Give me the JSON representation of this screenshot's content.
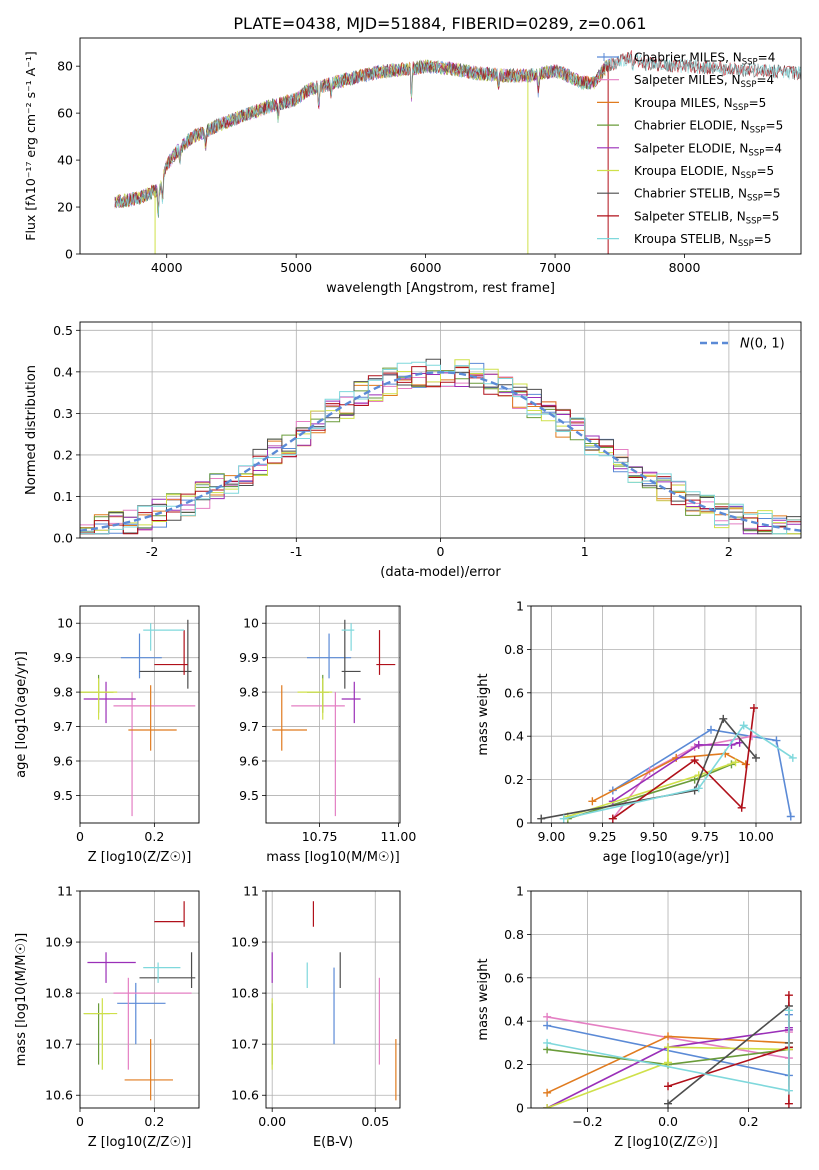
{
  "title": "PLATE=0438, MJD=51884, FIBERID=0289, z=0.061",
  "colors": {
    "Chabrier MILES": "#5b8ad6",
    "Salpeter MILES": "#e47fc3",
    "Kroupa MILES": "#e07b1f",
    "Chabrier ELODIE": "#6a9c3a",
    "Salpeter ELODIE": "#9a2fb8",
    "Kroupa ELODIE": "#cfe04a",
    "Chabrier STELIB": "#4d4d4d",
    "Salpeter STELIB": "#b0101a",
    "Kroupa STELIB": "#7fd8dc"
  },
  "chart_data": [
    {
      "id": "spectrum",
      "type": "line",
      "title": "PLATE=0438, MJD=51884, FIBERID=0289, z=0.061",
      "xlabel": "wavelength [Angstrom, rest frame]",
      "ylabel": "Flux [f_λ 10^-17 erg cm^-2 s^-1 A^-1]",
      "xlim": [
        3330,
        8900
      ],
      "ylim": [
        0,
        92
      ],
      "xticks": [
        4000,
        5000,
        6000,
        7000,
        8000
      ],
      "yticks": [
        0,
        20,
        40,
        60,
        80
      ],
      "grid": false,
      "legend_position": "top-right",
      "legend": [
        {
          "label": "Chabrier MILES",
          "nssp": "4"
        },
        {
          "label": "Salpeter MILES",
          "nssp": "4"
        },
        {
          "label": "Kroupa MILES",
          "nssp": "5"
        },
        {
          "label": "Chabrier ELODIE",
          "nssp": "5"
        },
        {
          "label": "Salpeter ELODIE",
          "nssp": "4"
        },
        {
          "label": "Kroupa ELODIE",
          "nssp": "5"
        },
        {
          "label": "Chabrier STELIB",
          "nssp": "5"
        },
        {
          "label": "Salpeter STELIB",
          "nssp": "5"
        },
        {
          "label": "Kroupa STELIB",
          "nssp": "5"
        }
      ],
      "continuum": [
        [
          3600,
          22
        ],
        [
          3800,
          24
        ],
        [
          3950,
          28
        ],
        [
          4000,
          38
        ],
        [
          4100,
          45
        ],
        [
          4200,
          50
        ],
        [
          4300,
          52
        ],
        [
          4400,
          55
        ],
        [
          4600,
          59
        ],
        [
          4800,
          63
        ],
        [
          5000,
          66
        ],
        [
          5100,
          70
        ],
        [
          5300,
          73
        ],
        [
          5500,
          76
        ],
        [
          5700,
          78
        ],
        [
          5900,
          79
        ],
        [
          6000,
          80
        ],
        [
          6200,
          79
        ],
        [
          6400,
          77
        ],
        [
          6600,
          76
        ],
        [
          6800,
          76
        ],
        [
          6900,
          77
        ],
        [
          7000,
          78
        ],
        [
          7100,
          76
        ],
        [
          7200,
          73
        ],
        [
          7300,
          73
        ],
        [
          7400,
          80
        ],
        [
          7600,
          84
        ],
        [
          7700,
          81
        ],
        [
          8000,
          80
        ],
        [
          8300,
          79
        ],
        [
          8600,
          78
        ],
        [
          8900,
          77
        ]
      ]
    },
    {
      "id": "residuals",
      "type": "histogram",
      "xlabel": "(data-model)/error",
      "ylabel": "Normed distribution",
      "xlim": [
        -2.5,
        2.5
      ],
      "ylim": [
        0,
        0.52
      ],
      "xticks": [
        -2,
        -1,
        0,
        1,
        2
      ],
      "yticks": [
        0.0,
        0.1,
        0.2,
        0.3,
        0.4,
        0.5
      ],
      "grid": true,
      "legend_position": "top-right",
      "reference_label": "N(0,1)",
      "bin_width": 0.1
    },
    {
      "id": "age-vs-Z",
      "type": "errorbar",
      "xlabel": "Z [log10(Z/Z☉)]",
      "ylabel": "age  [log10(age/yr)]",
      "xlim": [
        0.0,
        0.32
      ],
      "ylim": [
        9.42,
        10.05
      ],
      "xticks": [
        0.0,
        0.2
      ],
      "yticks": [
        9.5,
        9.6,
        9.7,
        9.8,
        9.9,
        10.0
      ],
      "grid": true,
      "points": [
        {
          "model": "Chabrier MILES",
          "x": 0.16,
          "y": 9.9,
          "xerr": [
            0.11,
            0.22
          ],
          "yerr": [
            9.84,
            9.97
          ]
        },
        {
          "model": "Salpeter MILES",
          "x": 0.14,
          "y": 9.76,
          "xerr": [
            0.09,
            0.31
          ],
          "yerr": [
            9.44,
            9.8
          ]
        },
        {
          "model": "Kroupa MILES",
          "x": 0.19,
          "y": 9.69,
          "xerr": [
            0.13,
            0.26
          ],
          "yerr": [
            9.63,
            9.82
          ]
        },
        {
          "model": "Chabrier ELODIE",
          "x": 0.05,
          "y": 9.8,
          "xerr": [
            0.0,
            0.09
          ],
          "yerr": [
            9.74,
            9.85
          ]
        },
        {
          "model": "Salpeter ELODIE",
          "x": 0.07,
          "y": 9.78,
          "xerr": [
            0.01,
            0.15
          ],
          "yerr": [
            9.71,
            9.83
          ]
        },
        {
          "model": "Kroupa ELODIE",
          "x": 0.05,
          "y": 9.8,
          "xerr": [
            0.0,
            0.1
          ],
          "yerr": [
            9.72,
            9.84
          ]
        },
        {
          "model": "Chabrier STELIB",
          "x": 0.29,
          "y": 9.86,
          "xerr": [
            0.16,
            0.3
          ],
          "yerr": [
            9.81,
            10.01
          ]
        },
        {
          "model": "Salpeter STELIB",
          "x": 0.28,
          "y": 9.88,
          "xerr": [
            0.2,
            0.29
          ],
          "yerr": [
            9.85,
            9.98
          ]
        },
        {
          "model": "Kroupa STELIB",
          "x": 0.19,
          "y": 9.98,
          "xerr": [
            0.17,
            0.28
          ],
          "yerr": [
            9.92,
            10.0
          ]
        }
      ]
    },
    {
      "id": "age-vs-mass",
      "type": "errorbar",
      "xlabel": "mass [log10(M/M☉)]",
      "ylabel": "",
      "xlim": [
        10.58,
        11.005
      ],
      "ylim": [
        9.42,
        10.05
      ],
      "xticks": [
        10.75,
        11.0
      ],
      "xticklabels": [
        "10.75",
        "11.00"
      ],
      "yticks": [
        9.5,
        9.6,
        9.7,
        9.8,
        9.9,
        10.0
      ],
      "grid": true,
      "points": [
        {
          "model": "Chabrier MILES",
          "x": 10.78,
          "y": 9.9,
          "xerr": [
            10.71,
            10.85
          ],
          "yerr": [
            9.84,
            9.97
          ]
        },
        {
          "model": "Salpeter MILES",
          "x": 10.8,
          "y": 9.76,
          "xerr": [
            10.66,
            10.83
          ],
          "yerr": [
            9.44,
            9.8
          ]
        },
        {
          "model": "Kroupa MILES",
          "x": 10.63,
          "y": 9.69,
          "xerr": [
            10.6,
            10.71
          ],
          "yerr": [
            9.63,
            9.82
          ]
        },
        {
          "model": "Chabrier ELODIE",
          "x": 10.76,
          "y": 9.8,
          "xerr": [
            10.71,
            10.78
          ],
          "yerr": [
            9.74,
            9.85
          ]
        },
        {
          "model": "Salpeter ELODIE",
          "x": 10.86,
          "y": 9.78,
          "xerr": [
            10.82,
            10.88
          ],
          "yerr": [
            9.71,
            9.83
          ]
        },
        {
          "model": "Kroupa ELODIE",
          "x": 10.76,
          "y": 9.8,
          "xerr": [
            10.68,
            10.79
          ],
          "yerr": [
            9.72,
            9.84
          ]
        },
        {
          "model": "Chabrier STELIB",
          "x": 10.83,
          "y": 9.86,
          "xerr": [
            10.82,
            10.88
          ],
          "yerr": [
            9.81,
            10.01
          ]
        },
        {
          "model": "Salpeter STELIB",
          "x": 10.94,
          "y": 9.88,
          "xerr": [
            10.93,
            10.99
          ],
          "yerr": [
            9.85,
            9.98
          ]
        },
        {
          "model": "Kroupa STELIB",
          "x": 10.85,
          "y": 9.98,
          "xerr": [
            10.82,
            10.86
          ],
          "yerr": [
            9.92,
            10.0
          ]
        }
      ]
    },
    {
      "id": "weight-vs-age",
      "type": "line",
      "xlabel": "age  [log10(age/yr)]",
      "ylabel": "mass weight",
      "xlim": [
        8.9,
        10.22
      ],
      "ylim": [
        0,
        1.0
      ],
      "xticks": [
        9.0,
        9.25,
        9.5,
        9.75,
        10.0
      ],
      "xticklabels": [
        "9.00",
        "9.25",
        "9.50",
        "9.75",
        "10.00"
      ],
      "yticks": [
        0.0,
        0.2,
        0.4,
        0.6,
        0.8,
        1.0
      ],
      "grid": true,
      "series": [
        {
          "model": "Chabrier MILES",
          "x": [
            9.3,
            9.78,
            10.1,
            10.17
          ],
          "y": [
            0.15,
            0.43,
            0.38,
            0.03
          ]
        },
        {
          "model": "Salpeter MILES",
          "x": [
            9.3,
            9.48,
            9.7,
            9.98
          ],
          "y": [
            0.02,
            0.24,
            0.35,
            0.4
          ]
        },
        {
          "model": "Kroupa MILES",
          "x": [
            9.2,
            9.61,
            9.85,
            9.95
          ],
          "y": [
            0.1,
            0.3,
            0.32,
            0.27
          ]
        },
        {
          "model": "Chabrier ELODIE",
          "x": [
            9.08,
            9.7,
            9.88
          ],
          "y": [
            0.02,
            0.2,
            0.27
          ]
        },
        {
          "model": "Salpeter ELODIE",
          "x": [
            9.3,
            9.72,
            9.88,
            9.92
          ],
          "y": [
            0.1,
            0.36,
            0.36,
            0.37
          ]
        },
        {
          "model": "Kroupa ELODIE",
          "x": [
            9.08,
            9.72,
            9.9
          ],
          "y": [
            0.03,
            0.22,
            0.28
          ]
        },
        {
          "model": "Chabrier STELIB",
          "x": [
            8.95,
            9.7,
            9.84,
            10.0
          ],
          "y": [
            0.02,
            0.15,
            0.48,
            0.3
          ]
        },
        {
          "model": "Salpeter STELIB",
          "x": [
            9.3,
            9.7,
            9.93,
            9.99
          ],
          "y": [
            0.02,
            0.29,
            0.07,
            0.53
          ]
        },
        {
          "model": "Kroupa STELIB",
          "x": [
            9.06,
            9.72,
            9.94,
            10.18
          ],
          "y": [
            0.02,
            0.16,
            0.45,
            0.3
          ]
        }
      ]
    },
    {
      "id": "mass-vs-Z",
      "type": "errorbar",
      "xlabel": "Z [log10(Z/Z☉)]",
      "ylabel": "mass [log10(M/M☉)]",
      "xlim": [
        0.0,
        0.32
      ],
      "ylim": [
        10.575,
        11.0
      ],
      "xticks": [
        0.0,
        0.2
      ],
      "yticks": [
        10.6,
        10.7,
        10.8,
        10.9,
        11.0
      ],
      "grid": true,
      "points": [
        {
          "model": "Chabrier MILES",
          "x": 0.15,
          "y": 10.78,
          "xerr": [
            0.1,
            0.23
          ],
          "yerr": [
            10.7,
            10.82
          ]
        },
        {
          "model": "Salpeter MILES",
          "x": 0.13,
          "y": 10.8,
          "xerr": [
            0.09,
            0.3
          ],
          "yerr": [
            10.65,
            10.83
          ]
        },
        {
          "model": "Kroupa MILES",
          "x": 0.19,
          "y": 10.63,
          "xerr": [
            0.12,
            0.25
          ],
          "yerr": [
            10.59,
            10.71
          ]
        },
        {
          "model": "Chabrier ELODIE",
          "x": 0.05,
          "y": 10.76,
          "xerr": [
            0.01,
            0.08
          ],
          "yerr": [
            10.66,
            10.78
          ]
        },
        {
          "model": "Salpeter ELODIE",
          "x": 0.07,
          "y": 10.86,
          "xerr": [
            0.02,
            0.15
          ],
          "yerr": [
            10.82,
            10.88
          ]
        },
        {
          "model": "Kroupa ELODIE",
          "x": 0.06,
          "y": 10.76,
          "xerr": [
            0.01,
            0.1
          ],
          "yerr": [
            10.65,
            10.79
          ]
        },
        {
          "model": "Chabrier STELIB",
          "x": 0.3,
          "y": 10.83,
          "xerr": [
            0.16,
            0.31
          ],
          "yerr": [
            10.81,
            10.88
          ]
        },
        {
          "model": "Salpeter STELIB",
          "x": 0.28,
          "y": 10.94,
          "xerr": [
            0.2,
            0.28
          ],
          "yerr": [
            10.93,
            10.98
          ]
        },
        {
          "model": "Kroupa STELIB",
          "x": 0.21,
          "y": 10.85,
          "xerr": [
            0.17,
            0.27
          ],
          "yerr": [
            10.82,
            10.86
          ]
        }
      ]
    },
    {
      "id": "mass-vs-ebv",
      "type": "errorbar",
      "xlabel": "E(B-V)",
      "ylabel": "",
      "xlim": [
        -0.003,
        0.062
      ],
      "ylim": [
        10.575,
        11.0
      ],
      "xticks": [
        0.0,
        0.05
      ],
      "xticklabels": [
        "0.00",
        "0.05"
      ],
      "yticks": [
        10.6,
        10.7,
        10.8,
        10.9,
        11.0
      ],
      "grid": true,
      "points": [
        {
          "model": "Chabrier MILES",
          "x": 0.03,
          "y": 10.78,
          "yerr": [
            10.7,
            10.85
          ]
        },
        {
          "model": "Salpeter MILES",
          "x": 0.052,
          "y": 10.79,
          "yerr": [
            10.66,
            10.83
          ]
        },
        {
          "model": "Kroupa MILES",
          "x": 0.06,
          "y": 10.66,
          "yerr": [
            10.59,
            10.71
          ]
        },
        {
          "model": "Chabrier ELODIE",
          "x": 0.0,
          "y": 10.76,
          "yerr": [
            10.66,
            10.78
          ]
        },
        {
          "model": "Salpeter ELODIE",
          "x": 0.0,
          "y": 10.86,
          "yerr": [
            10.82,
            10.88
          ]
        },
        {
          "model": "Kroupa ELODIE",
          "x": 0.0,
          "y": 10.73,
          "yerr": [
            10.65,
            10.79
          ]
        },
        {
          "model": "Chabrier STELIB",
          "x": 0.033,
          "y": 10.83,
          "yerr": [
            10.81,
            10.88
          ]
        },
        {
          "model": "Salpeter STELIB",
          "x": 0.02,
          "y": 10.96,
          "yerr": [
            10.93,
            10.98
          ]
        },
        {
          "model": "Kroupa STELIB",
          "x": 0.017,
          "y": 10.83,
          "yerr": [
            10.81,
            10.86
          ]
        }
      ]
    },
    {
      "id": "weight-vs-Z",
      "type": "line",
      "xlabel": "Z [log10(Z/Z☉)]",
      "ylabel": "mass weight",
      "xlim": [
        -0.34,
        0.33
      ],
      "ylim": [
        0,
        1.0
      ],
      "xticks": [
        -0.2,
        0.0,
        0.2
      ],
      "xticklabels": [
        "−0.2",
        "0.0",
        "0.2"
      ],
      "yticks": [
        0.0,
        0.2,
        0.4,
        0.6,
        0.8,
        1.0
      ],
      "grid": true,
      "series": [
        {
          "model": "Chabrier MILES",
          "x": [
            -0.3,
            0.3,
            0.3
          ],
          "y": [
            0.38,
            0.15,
            0.43
          ]
        },
        {
          "model": "Salpeter MILES",
          "x": [
            -0.3,
            0.3,
            0.3
          ],
          "y": [
            0.42,
            0.23,
            0.35
          ]
        },
        {
          "model": "Kroupa MILES",
          "x": [
            -0.3,
            0.0,
            0.3,
            0.3
          ],
          "y": [
            0.07,
            0.33,
            0.3,
            0.27
          ]
        },
        {
          "model": "Chabrier ELODIE",
          "x": [
            -0.3,
            0.0,
            0.3
          ],
          "y": [
            0.27,
            0.2,
            0.27
          ]
        },
        {
          "model": "Salpeter ELODIE",
          "x": [
            -0.3,
            0.0,
            0.3,
            0.3
          ],
          "y": [
            0.0,
            0.28,
            0.36,
            0.37
          ]
        },
        {
          "model": "Kroupa ELODIE",
          "x": [
            -0.3,
            0.0,
            0.0,
            0.3
          ],
          "y": [
            0.0,
            0.21,
            0.28,
            0.27
          ]
        },
        {
          "model": "Chabrier STELIB",
          "x": [
            0.0,
            0.3,
            0.3
          ],
          "y": [
            0.02,
            0.47,
            0.3
          ]
        },
        {
          "model": "Salpeter STELIB",
          "x": [
            0.0,
            0.3,
            0.3,
            0.3
          ],
          "y": [
            0.1,
            0.28,
            0.02,
            0.52
          ]
        },
        {
          "model": "Kroupa STELIB",
          "x": [
            -0.3,
            0.3,
            0.3
          ],
          "y": [
            0.3,
            0.08,
            0.45
          ]
        }
      ]
    }
  ]
}
